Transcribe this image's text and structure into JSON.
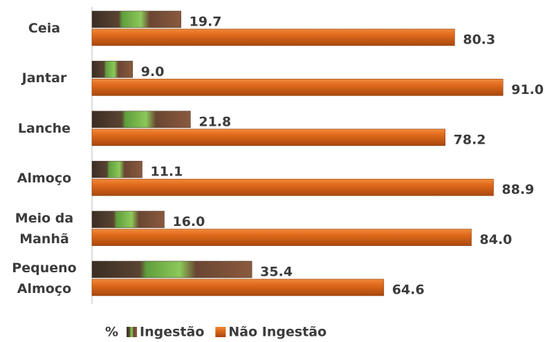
{
  "chart_data": {
    "type": "bar",
    "orientation": "horizontal",
    "categories": [
      "Ceia",
      "Jantar",
      "Lanche",
      "Almoço",
      "Meio da Manhã",
      "Pequeno Almoço"
    ],
    "series": [
      {
        "name": "Ingestão",
        "color": "#6aa84f",
        "values": [
          19.7,
          9.0,
          21.8,
          11.1,
          16.0,
          35.4
        ],
        "value_labels": [
          "19.7",
          "9.0",
          "21.8",
          "11.1",
          "16.0",
          "35.4"
        ]
      },
      {
        "name": "Não Ingestão",
        "color": "#d9661f",
        "values": [
          80.3,
          91.0,
          78.2,
          88.9,
          84.0,
          64.6
        ],
        "value_labels": [
          "80.3",
          "91.0",
          "78.2",
          "88.9",
          "84.0",
          "64.6"
        ]
      }
    ],
    "xlim": [
      0,
      100
    ],
    "legend_title": "%",
    "legend": "bottom"
  }
}
